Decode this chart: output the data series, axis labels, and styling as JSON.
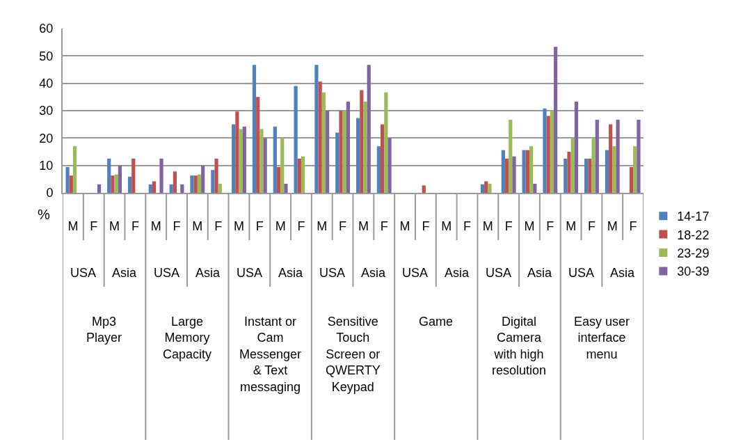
{
  "chart_data": {
    "type": "bar",
    "ylabel": "%",
    "categories": [
      "M",
      "F",
      "M",
      "F",
      "M",
      "F",
      "M",
      "F",
      "M",
      "F",
      "M",
      "F",
      "M",
      "F",
      "M",
      "F",
      "M",
      "F",
      "M",
      "F",
      "M",
      "F",
      "M",
      "F",
      "M",
      "F",
      "M",
      "F"
    ],
    "annotations": [
      "USA",
      "Asia",
      "USA",
      "Asia",
      "USA",
      "Asia",
      "USA",
      "Asia",
      "USA",
      "Asia",
      "USA",
      "Asia",
      "USA",
      "Asia",
      "Mp3\nPlayer",
      "Large\nMemory\nCapacity",
      "Instant or\nCam\nMessenger\n& Text\nmessaging",
      "Sensitive\nTouch\nScreen or\nQWERTY\nKeypad",
      "Game",
      "Digital\nCamera\nwith high\nresolution",
      "Easy user\ninterface\nmenu"
    ],
    "series": [
      {
        "name": "14-17",
        "color": "#4f81bd",
        "values": [
          9.4,
          0,
          12.5,
          5.9,
          3.1,
          3.1,
          6.3,
          8.3,
          25,
          46.7,
          24.2,
          39,
          46.7,
          22,
          27.3,
          17,
          0,
          0,
          0,
          0,
          3.1,
          15.6,
          15.6,
          30.8,
          12.5,
          12.5,
          15.6,
          0
        ]
      },
      {
        "name": "18-22",
        "color": "#c0504d",
        "values": [
          6.3,
          0,
          6.3,
          12.5,
          4.2,
          7.8,
          6.3,
          12.5,
          29.7,
          35,
          9.4,
          12.5,
          40.6,
          30,
          37.5,
          25,
          0,
          2.7,
          0,
          0,
          4.2,
          12.5,
          15.6,
          28.1,
          15,
          12.5,
          25,
          9.4
        ]
      },
      {
        "name": "23-29",
        "color": "#9bbb59",
        "values": [
          17,
          0,
          6.7,
          0,
          0,
          0,
          6.7,
          3.3,
          23.3,
          23.3,
          20,
          13.3,
          36.7,
          30,
          33.3,
          36.7,
          0,
          0,
          0,
          0,
          3.3,
          26.7,
          17,
          30,
          20,
          20,
          17,
          17
        ]
      },
      {
        "name": "30-39",
        "color": "#8064a2",
        "values": [
          0,
          3.1,
          10,
          0,
          12.5,
          3.1,
          10,
          0,
          24.2,
          20,
          3.3,
          0,
          30,
          33.3,
          46.7,
          20,
          0,
          0,
          0,
          0,
          0,
          13.3,
          3.3,
          53.3,
          33.3,
          26.7,
          26.7,
          26.7
        ]
      }
    ],
    "ylim": [
      0,
      60
    ],
    "yticks": [
      0,
      10,
      20,
      30,
      40,
      50,
      60
    ],
    "grid": "y",
    "legend": "right"
  }
}
